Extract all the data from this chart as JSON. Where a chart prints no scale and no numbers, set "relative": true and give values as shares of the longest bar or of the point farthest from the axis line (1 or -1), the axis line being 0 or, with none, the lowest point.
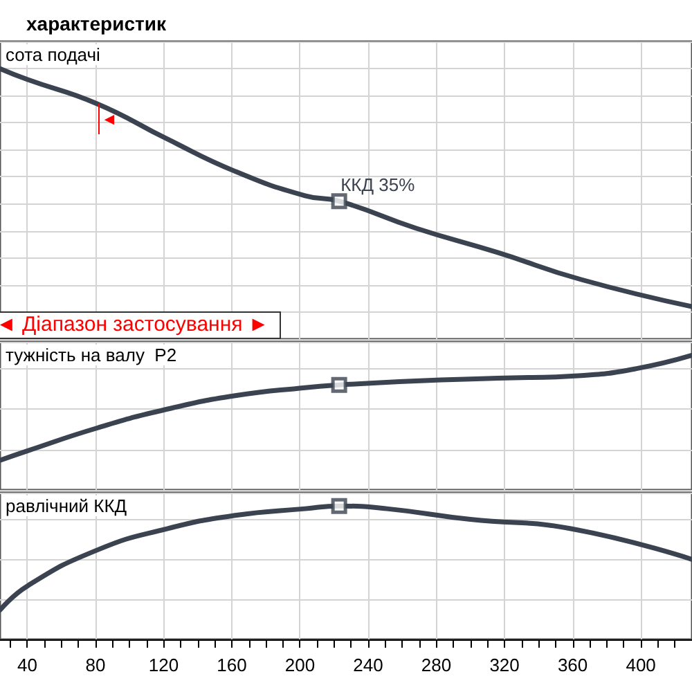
{
  "chart_data": [
    {
      "type": "line",
      "title": "характеристик",
      "ylabel": "сота подачі",
      "relative": true,
      "grid": true,
      "tick_labels": false,
      "xlim": [
        24,
        430
      ],
      "xticks": [
        40,
        80,
        120,
        160,
        200,
        240,
        280,
        320,
        360,
        400
      ],
      "annotations": [
        {
          "text": "ККД  35%",
          "x": 223,
          "y": 0.51
        },
        "◄",
        "◄ Діапазон застосування ►"
      ],
      "series": [
        {
          "color": "#3b4350",
          "x": [
            24,
            40,
            81,
            122,
            162,
            203,
            223,
            268,
            316,
            365,
            430
          ],
          "values": [
            1,
            0.96,
            0.87,
            0.74,
            0.62,
            0.53,
            0.51,
            0.41,
            0.32,
            0.22,
            0.12
          ]
        },
        {
          "type": "scatter",
          "marker": "square",
          "color": "#3b4350",
          "x": [
            223
          ],
          "values": [
            0.51
          ]
        }
      ]
    },
    {
      "type": "line",
      "ylabel": "тужність на валу  P2",
      "relative": true,
      "grid": true,
      "tick_labels": false,
      "xlim": [
        24,
        430
      ],
      "xticks": [
        40,
        80,
        120,
        160,
        200,
        240,
        280,
        320,
        360,
        400
      ],
      "series": [
        {
          "color": "#3b4350",
          "x": [
            24,
            40,
            81,
            122,
            162,
            203,
            223,
            268,
            316,
            365,
            397,
            430
          ],
          "values": [
            0.22,
            0.29,
            0.46,
            0.6,
            0.7,
            0.76,
            0.78,
            0.81,
            0.83,
            0.85,
            0.9,
            1
          ]
        },
        {
          "type": "scatter",
          "marker": "square",
          "color": "#3b4350",
          "x": [
            223
          ],
          "values": [
            0.78
          ]
        }
      ]
    },
    {
      "type": "line",
      "ylabel": "равлічний ККД",
      "relative": true,
      "grid": true,
      "tick_labels": "x",
      "xlim": [
        24,
        430
      ],
      "xticks": [
        {
          "value": 30,
          "label": null
        },
        40,
        {
          "value": 50,
          "label": null
        },
        {
          "value": 60,
          "label": null
        },
        {
          "value": 70,
          "label": null
        },
        80,
        {
          "value": 90,
          "label": null
        },
        {
          "value": 100,
          "label": null
        },
        {
          "value": 110,
          "label": null
        },
        120,
        {
          "value": 130,
          "label": null
        },
        {
          "value": 140,
          "label": null
        },
        {
          "value": 150,
          "label": null
        },
        160,
        {
          "value": 170,
          "label": null
        },
        {
          "value": 180,
          "label": null
        },
        {
          "value": 190,
          "label": null
        },
        200,
        {
          "value": 210,
          "label": null
        },
        {
          "value": 220,
          "label": null
        },
        {
          "value": 230,
          "label": null
        },
        240,
        {
          "value": 250,
          "label": null
        },
        {
          "value": 260,
          "label": null
        },
        {
          "value": 270,
          "label": null
        },
        280,
        {
          "value": 290,
          "label": null
        },
        {
          "value": 300,
          "label": null
        },
        {
          "value": 310,
          "label": null
        },
        320,
        {
          "value": 330,
          "label": null
        },
        {
          "value": 340,
          "label": null
        },
        {
          "value": 350,
          "label": null
        },
        360,
        {
          "value": 370,
          "label": null
        },
        {
          "value": 380,
          "label": null
        },
        {
          "value": 390,
          "label": null
        },
        400,
        {
          "value": 410,
          "label": null
        },
        {
          "value": 420,
          "label": null
        }
      ],
      "series": [
        {
          "color": "#3b4350",
          "x": [
            24,
            40,
            81,
            122,
            162,
            203,
            223,
            251,
            300,
            359,
            430
          ],
          "values": [
            0.22,
            0.4,
            0.67,
            0.83,
            0.93,
            0.98,
            1,
            0.98,
            0.9,
            0.83,
            0.6
          ]
        },
        {
          "type": "scatter",
          "marker": "square",
          "color": "#3b4350",
          "x": [
            223
          ],
          "values": [
            1
          ]
        }
      ]
    }
  ]
}
